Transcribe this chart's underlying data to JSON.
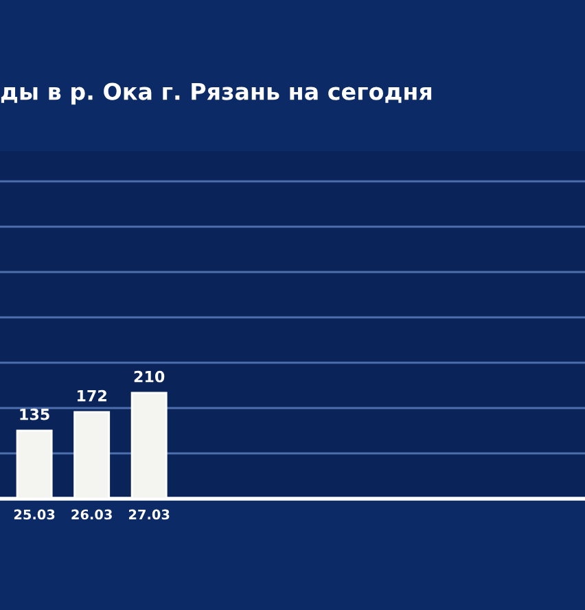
{
  "chart_data": {
    "type": "bar",
    "title": "ды в р. Ока г. Рязань на сегодня",
    "categories": [
      "25.03",
      "26.03",
      "27.03",
      null,
      null,
      null,
      null,
      null,
      null,
      null
    ],
    "values": [
      135,
      172,
      210,
      null,
      null,
      null,
      null,
      null,
      null,
      null
    ],
    "color": "#f4f4f0",
    "data_labels": true,
    "grid": "y",
    "tick_labels": "x",
    "ylim": [
      0,
      690
    ],
    "yticks": [
      {
        "value": 90,
        "label": null
      },
      {
        "value": 180,
        "label": null
      },
      {
        "value": 270,
        "label": null
      },
      {
        "value": 360,
        "label": null
      },
      {
        "value": 450,
        "label": null
      },
      {
        "value": 540,
        "label": null
      },
      {
        "value": 630,
        "label": null
      }
    ]
  }
}
